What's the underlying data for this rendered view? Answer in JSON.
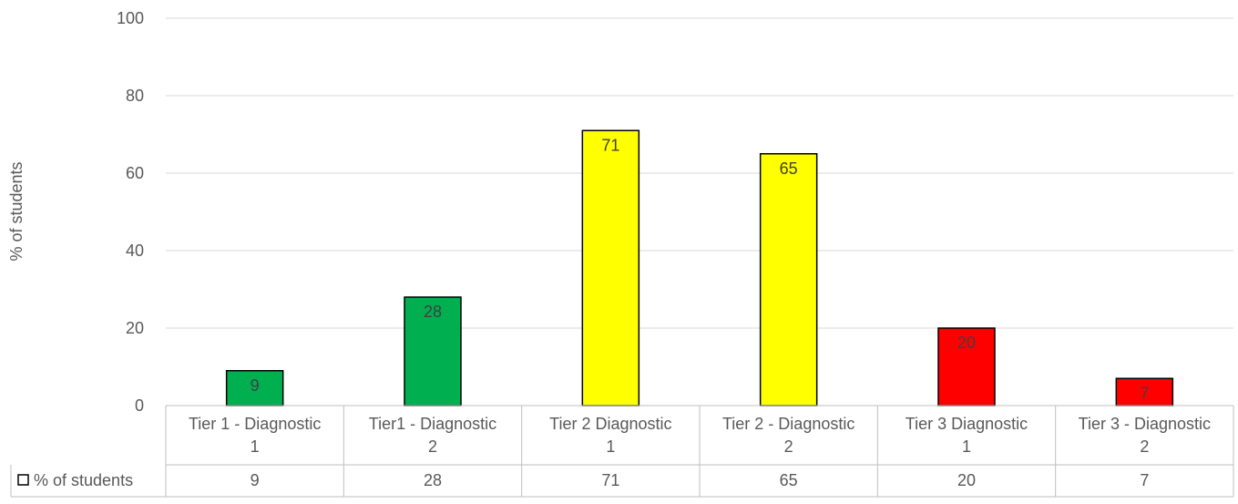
{
  "chart_data": {
    "type": "bar",
    "ylabel": "% of students",
    "ylim": [
      0,
      100
    ],
    "yticks": [
      0,
      20,
      40,
      60,
      80,
      100
    ],
    "grid": true,
    "categories": [
      [
        "Tier 1 - Diagnostic",
        "1"
      ],
      [
        "Tier1 - Diagnostic",
        "2"
      ],
      [
        "Tier 2 Diagnostic",
        "1"
      ],
      [
        "Tier 2 - Diagnostic",
        "2"
      ],
      [
        "Tier 3 Diagnostic",
        "1"
      ],
      [
        "Tier 3 - Diagnostic",
        "2"
      ]
    ],
    "series": [
      {
        "name": "% of students",
        "values": [
          9,
          28,
          71,
          65,
          20,
          7
        ],
        "colors": [
          "#00b050",
          "#00b050",
          "#ffff00",
          "#ffff00",
          "#ff0000",
          "#ff0000"
        ]
      }
    ],
    "data_table": true,
    "colors": {
      "grid": "#d9d9d9",
      "axis": "#bfbfbf",
      "text": "#595959",
      "bar_border": "#000000"
    }
  }
}
